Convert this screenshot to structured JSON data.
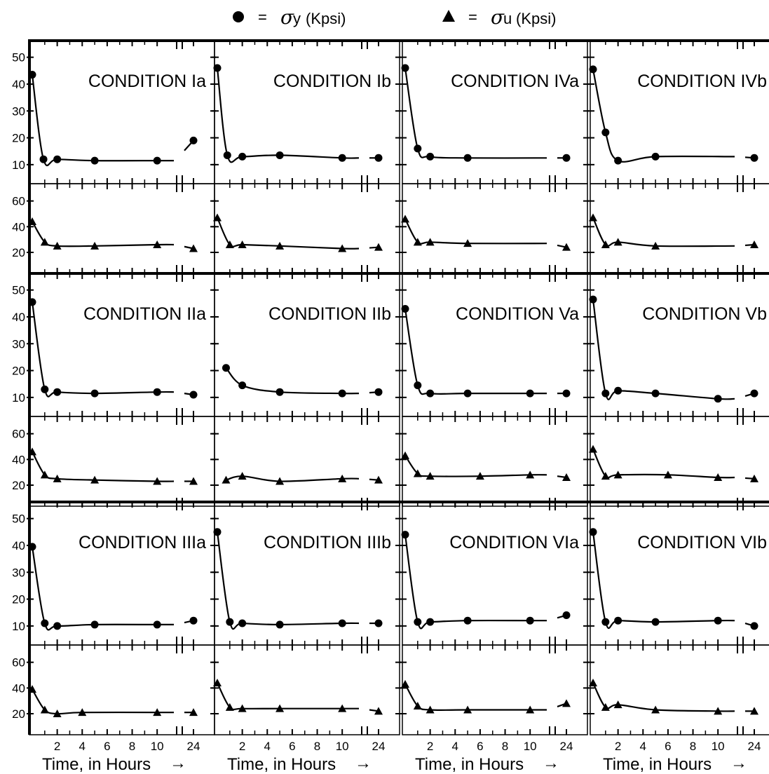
{
  "legend": {
    "items": [
      {
        "marker": "circle",
        "eq": "=",
        "symbol": "σ",
        "sub": "y",
        "unit": "(Kpsi)"
      },
      {
        "marker": "triangle",
        "eq": "=",
        "symbol": "σ",
        "sub": "u",
        "unit": "(Kpsi)"
      }
    ]
  },
  "chart_data": {
    "type": "line",
    "layout": "4 columns x 3 rows of conditions; each condition has a yield-stress panel (top) and ultimate-stress panel (bottom)",
    "x_ticks": [
      2,
      4,
      6,
      8,
      10
    ],
    "x_break_tick": 24,
    "xlabel": "Time, in Hours",
    "xlabel_arrow": "→",
    "sigma_y": {
      "ylim": [
        5,
        52
      ],
      "ticks": [
        10,
        20,
        30,
        40,
        50
      ]
    },
    "sigma_u": {
      "ylim": [
        8,
        68
      ],
      "ticks": [
        20,
        40,
        60
      ]
    },
    "conditions": [
      {
        "label": "CONDITION Ia",
        "row": 0,
        "col": 0,
        "sigma_y": [
          [
            0,
            43.5
          ],
          [
            0.9,
            12
          ],
          [
            2,
            12
          ],
          [
            5,
            11.5
          ],
          [
            10,
            11.5
          ],
          [
            24,
            19
          ]
        ],
        "sigma_u": [
          [
            0,
            44
          ],
          [
            1,
            28
          ],
          [
            2,
            25
          ],
          [
            5,
            25
          ],
          [
            10,
            26
          ],
          [
            24,
            23
          ]
        ]
      },
      {
        "label": "CONDITION Ib",
        "row": 0,
        "col": 1,
        "sigma_y": [
          [
            0,
            46
          ],
          [
            0.8,
            13.5
          ],
          [
            2,
            13
          ],
          [
            5,
            13.5
          ],
          [
            10,
            12.5
          ],
          [
            24,
            12.5
          ]
        ],
        "sigma_u": [
          [
            0,
            47
          ],
          [
            1,
            26
          ],
          [
            2,
            26
          ],
          [
            5,
            25
          ],
          [
            10,
            23
          ],
          [
            24,
            24
          ]
        ]
      },
      {
        "label": "CONDITION IVa",
        "row": 0,
        "col": 2,
        "sigma_y": [
          [
            0,
            46
          ],
          [
            1,
            16
          ],
          [
            2,
            13
          ],
          [
            5,
            12.5
          ],
          [
            24,
            12.5
          ]
        ],
        "sigma_u": [
          [
            0,
            46
          ],
          [
            1,
            28
          ],
          [
            2,
            28
          ],
          [
            5,
            27
          ],
          [
            24,
            24
          ]
        ]
      },
      {
        "label": "CONDITION IVb",
        "row": 0,
        "col": 3,
        "sigma_y": [
          [
            0,
            45.5
          ],
          [
            1,
            22
          ],
          [
            2,
            11.5
          ],
          [
            5,
            13
          ],
          [
            24,
            12.5
          ]
        ],
        "sigma_u": [
          [
            0,
            47
          ],
          [
            1,
            26
          ],
          [
            2,
            28
          ],
          [
            5,
            25
          ],
          [
            24,
            26
          ]
        ]
      },
      {
        "label": "CONDITION IIa",
        "row": 1,
        "col": 0,
        "sigma_y": [
          [
            0,
            45.5
          ],
          [
            1,
            13
          ],
          [
            2,
            12
          ],
          [
            5,
            11.5
          ],
          [
            10,
            12
          ],
          [
            24,
            11
          ]
        ],
        "sigma_u": [
          [
            0,
            46
          ],
          [
            1,
            28
          ],
          [
            2,
            25
          ],
          [
            5,
            24
          ],
          [
            10,
            23
          ],
          [
            24,
            23
          ]
        ]
      },
      {
        "label": "CONDITION IIb",
        "row": 1,
        "col": 1,
        "sigma_y": [
          [
            0.7,
            21
          ],
          [
            2,
            14.5
          ],
          [
            5,
            12
          ],
          [
            10,
            11.5
          ],
          [
            24,
            12
          ]
        ],
        "sigma_u": [
          [
            0.7,
            24
          ],
          [
            2,
            27
          ],
          [
            5,
            23
          ],
          [
            10,
            25
          ],
          [
            24,
            24
          ]
        ]
      },
      {
        "label": "CONDITION Va",
        "row": 1,
        "col": 2,
        "sigma_y": [
          [
            0,
            43
          ],
          [
            1,
            14.5
          ],
          [
            2,
            11.5
          ],
          [
            5,
            11.5
          ],
          [
            10,
            11.5
          ],
          [
            24,
            11.5
          ]
        ],
        "sigma_u": [
          [
            0,
            43
          ],
          [
            1,
            29
          ],
          [
            2,
            27
          ],
          [
            6,
            27
          ],
          [
            10,
            28
          ],
          [
            24,
            26
          ]
        ]
      },
      {
        "label": "CONDITION Vb",
        "row": 1,
        "col": 3,
        "sigma_y": [
          [
            0,
            46.5
          ],
          [
            1,
            11.5
          ],
          [
            2,
            12.5
          ],
          [
            5,
            11.5
          ],
          [
            10,
            9.5
          ],
          [
            24,
            11.5
          ]
        ],
        "sigma_u": [
          [
            0,
            48
          ],
          [
            1,
            27
          ],
          [
            2,
            28
          ],
          [
            6,
            28
          ],
          [
            10,
            26
          ],
          [
            24,
            25
          ]
        ]
      },
      {
        "label": "CONDITION IIIa",
        "row": 2,
        "col": 0,
        "sigma_y": [
          [
            0,
            39.5
          ],
          [
            1,
            11
          ],
          [
            2,
            10
          ],
          [
            5,
            10.5
          ],
          [
            10,
            10.5
          ],
          [
            24,
            12
          ]
        ],
        "sigma_u": [
          [
            0,
            39
          ],
          [
            1,
            23
          ],
          [
            2,
            20
          ],
          [
            4,
            21
          ],
          [
            10,
            21
          ],
          [
            24,
            21
          ]
        ]
      },
      {
        "label": "CONDITION IIIb",
        "row": 2,
        "col": 1,
        "sigma_y": [
          [
            0,
            45
          ],
          [
            1,
            11.5
          ],
          [
            2,
            11
          ],
          [
            5,
            10.5
          ],
          [
            10,
            11
          ],
          [
            24,
            11
          ]
        ],
        "sigma_u": [
          [
            0,
            44
          ],
          [
            1,
            25
          ],
          [
            2,
            24
          ],
          [
            5,
            24
          ],
          [
            10,
            24
          ],
          [
            24,
            22
          ]
        ]
      },
      {
        "label": "CONDITION VIa",
        "row": 2,
        "col": 2,
        "sigma_y": [
          [
            0,
            44
          ],
          [
            1,
            11.5
          ],
          [
            2,
            11.5
          ],
          [
            5,
            12
          ],
          [
            10,
            12
          ],
          [
            24,
            14
          ]
        ],
        "sigma_u": [
          [
            0,
            43
          ],
          [
            1,
            26
          ],
          [
            2,
            23
          ],
          [
            5,
            23
          ],
          [
            10,
            23
          ],
          [
            24,
            28
          ]
        ]
      },
      {
        "label": "CONDITION VIb",
        "row": 2,
        "col": 3,
        "sigma_y": [
          [
            0,
            45
          ],
          [
            1,
            11.5
          ],
          [
            2,
            12
          ],
          [
            5,
            11.5
          ],
          [
            10,
            12
          ],
          [
            24,
            10
          ]
        ],
        "sigma_u": [
          [
            0,
            44
          ],
          [
            1,
            25
          ],
          [
            2,
            27
          ],
          [
            5,
            23
          ],
          [
            10,
            22
          ],
          [
            24,
            22
          ]
        ]
      }
    ]
  }
}
